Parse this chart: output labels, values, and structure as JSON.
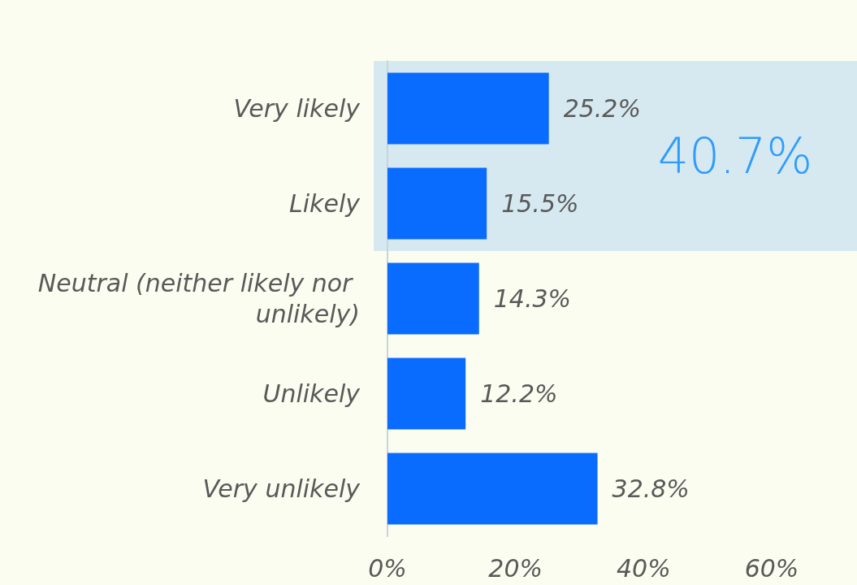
{
  "chart_data": {
    "type": "bar",
    "orientation": "horizontal",
    "categories": [
      "Very likely",
      "Likely",
      "Neutral (neither likely nor unlikely)",
      "Unlikely",
      "Very unlikely"
    ],
    "values": [
      25.2,
      15.5,
      14.3,
      12.2,
      32.8
    ],
    "value_labels": [
      "25.2%",
      "15.5%",
      "14.3%",
      "12.2%",
      "32.8%"
    ],
    "color": "#0a6cff",
    "xlim": [
      0,
      60
    ],
    "xticks": [
      {
        "value": 0,
        "label": "0%"
      },
      {
        "value": 20,
        "label": "20%"
      },
      {
        "value": 40,
        "label": "40%"
      },
      {
        "value": 60,
        "label": "60%"
      }
    ],
    "grid": false,
    "bands": [
      {
        "axis": "y",
        "from": "Very likely",
        "to": "Likely",
        "label": "40.7%",
        "color": "#d6e9f0"
      }
    ]
  }
}
